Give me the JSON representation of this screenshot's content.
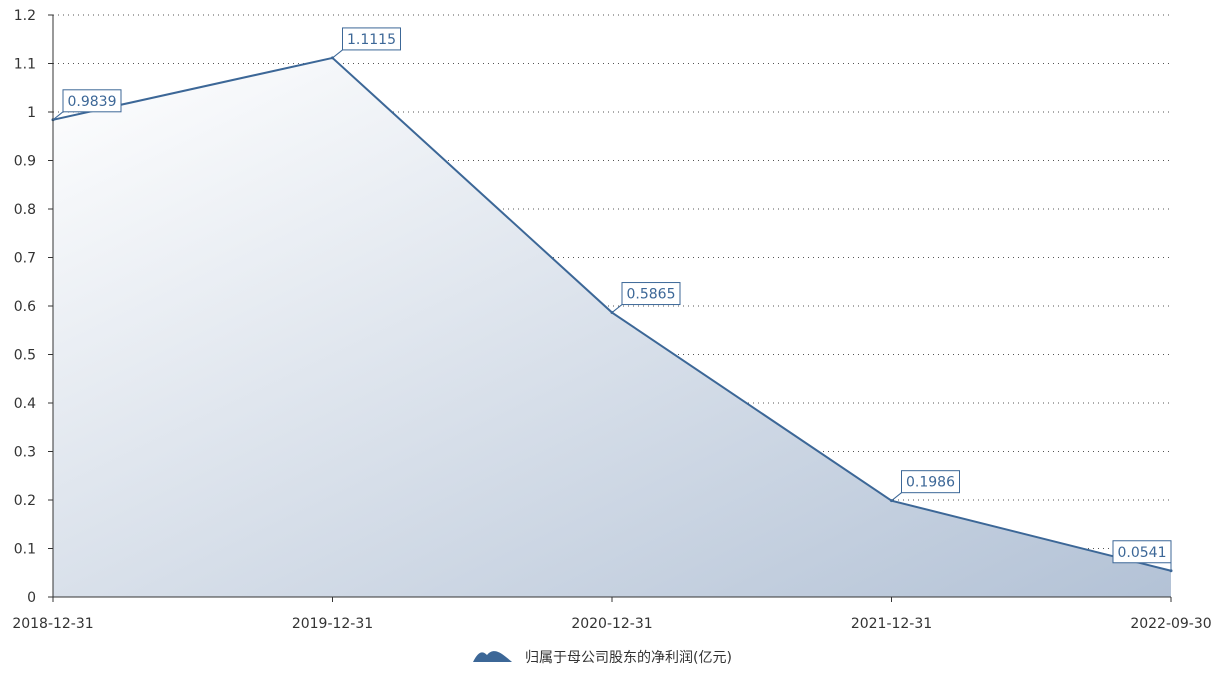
{
  "chart_data": {
    "type": "area",
    "x": [
      "2018-12-31",
      "2019-12-31",
      "2020-12-31",
      "2021-12-31",
      "2022-09-30"
    ],
    "series": [
      {
        "name": "归属于母公司股东的净利润(亿元)",
        "values": [
          0.9839,
          1.1115,
          0.5865,
          0.1986,
          0.0541
        ]
      }
    ],
    "data_labels": [
      "0.9839",
      "1.1115",
      "0.5865",
      "0.1986",
      "0.0541"
    ],
    "y_ticks": [
      "0",
      "0.1",
      "0.2",
      "0.3",
      "0.4",
      "0.5",
      "0.6",
      "0.7",
      "0.8",
      "0.9",
      "1",
      "1.1",
      "1.2"
    ],
    "ylim": [
      0,
      1.2
    ],
    "grid": true,
    "legend_position": "bottom-center",
    "title": "",
    "xlabel": "",
    "ylabel": ""
  },
  "colors": {
    "line": "#3c6797",
    "area_start": "#ffffff",
    "area_end": "#b3c2d6",
    "label_text": "#3c6797",
    "label_bg": "#ffffff",
    "axis": "#333333",
    "grid": "#555555"
  },
  "legend": {
    "label": "归属于母公司股东的净利润(亿元)",
    "icon": "mountain-area-icon"
  }
}
